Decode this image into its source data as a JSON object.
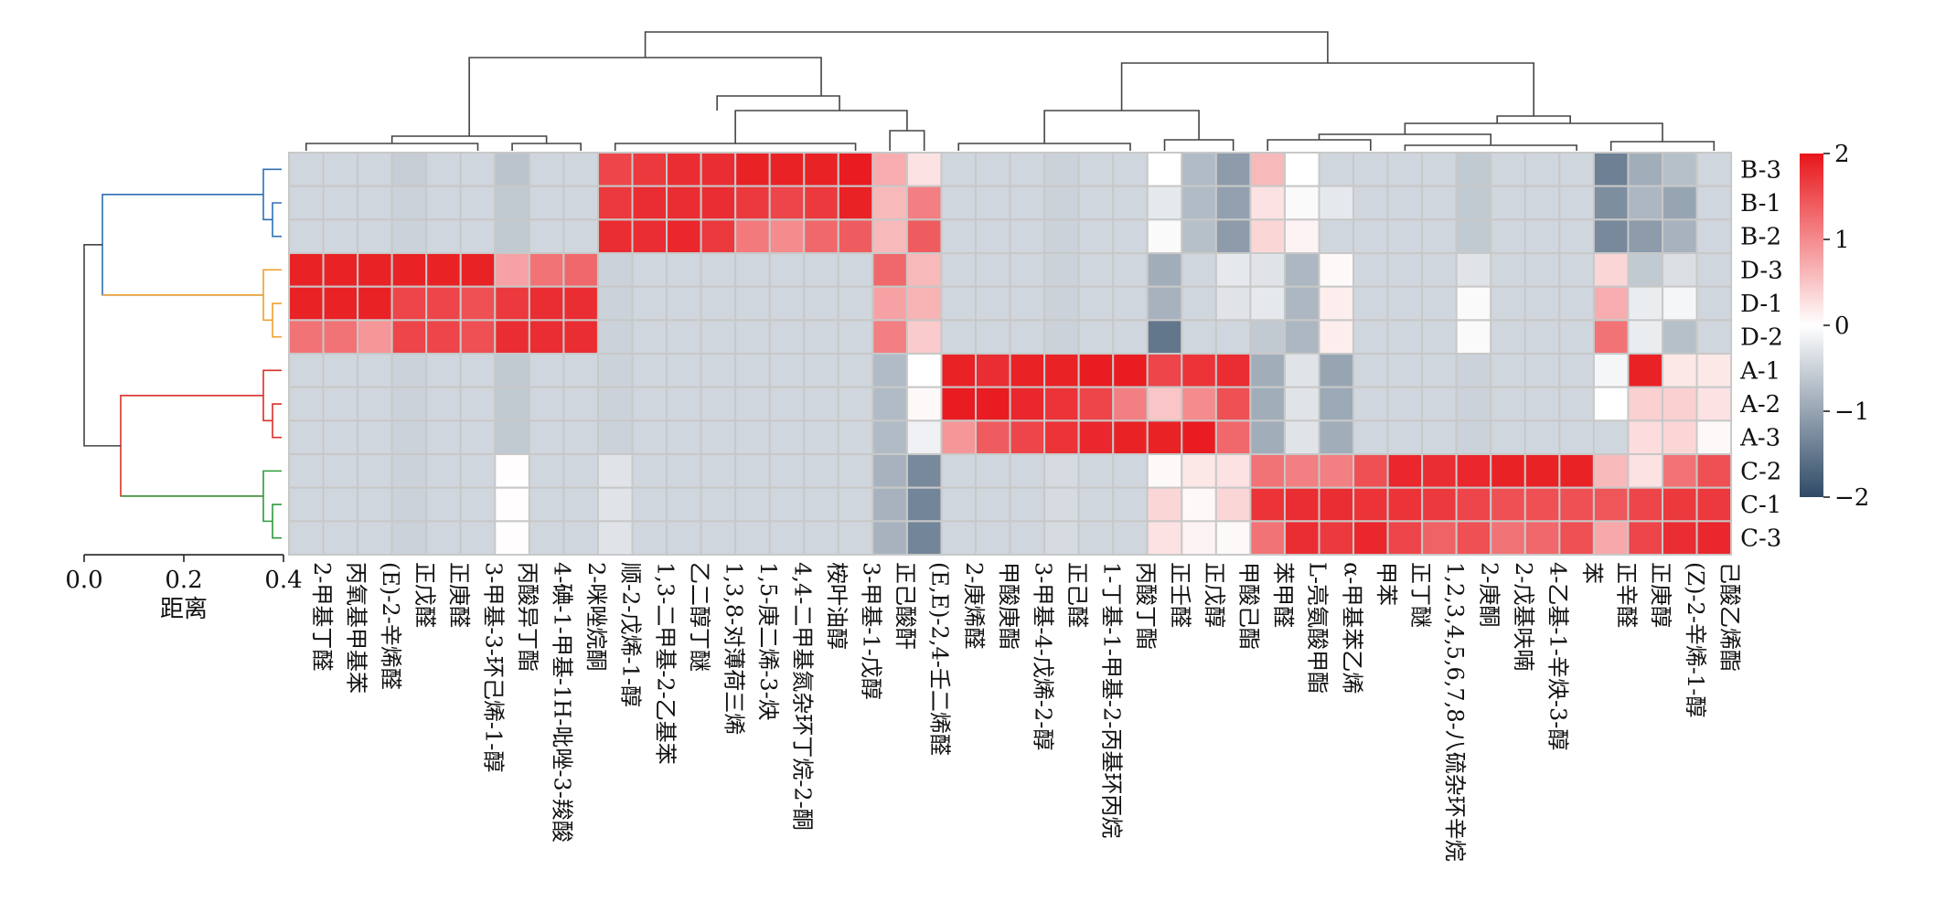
{
  "chart_data": {
    "type": "heatmap",
    "title": "",
    "xlabel": "",
    "ylabel": "",
    "rows": [
      "B-3",
      "B-1",
      "B-2",
      "D-3",
      "D-1",
      "D-2",
      "A-1",
      "A-2",
      "A-3",
      "C-2",
      "C-1",
      "C-3"
    ],
    "row_groups": [
      {
        "members": [
          "B-3",
          "B-1",
          "B-2"
        ],
        "color": "#2f6fb5"
      },
      {
        "members": [
          "D-3",
          "D-1",
          "D-2"
        ],
        "color": "#f0a030"
      },
      {
        "members": [
          "A-1",
          "A-2",
          "A-3"
        ],
        "color": "#d9302a"
      },
      {
        "members": [
          "C-2",
          "C-1",
          "C-3"
        ],
        "color": "#2e9a3c"
      }
    ],
    "columns": [
      "2-甲基丁醛",
      "丙氧基甲基苯",
      "(E)-2-辛烯醛",
      "正戊醛",
      "正庚醛",
      "3-甲基-3-环己烯-1-醇",
      "丙酸异丁酯",
      "4-碘-1-甲基-1H-吡唑-3-羧酸",
      "2-咪唑烷酮",
      "顺-2-戊烯-1-醇",
      "1,3-二甲基-2-乙基苯",
      "乙二醇丁醚",
      "1,3,8-对薄荷三烯",
      "1,5-庚二烯-3-炔",
      "4,4-二甲基氮杂环丁烷-2-酮",
      "桉叶油醇",
      "3-甲基-1-戊醇",
      "正己酸酐",
      "(E,E)-2,4-壬二烯醛",
      "2-庚烯醛",
      "甲酸庚酯",
      "3-甲基-4-戊烯-2-醇",
      "正己醛",
      "1-丁基-1-甲基-2-丙基环丙烷",
      "丙酸丁酯",
      "正壬醛",
      "正戊醇",
      "甲酸己酯",
      "苯甲醛",
      "L-亮氨酸甲酯",
      "α-甲基苯乙烯",
      "甲苯",
      "正丁醚",
      "1,2,3,4,5,6,7,8-八硫杂环辛烷",
      "2-庚酮",
      "2-戊基呋喃",
      "4-乙基-1-辛炔-3-醇",
      "苯",
      "正辛醛",
      "正庚醇",
      "(Z)-2-辛烯-1-醇",
      "己酸乙烯酯"
    ],
    "values": [
      [
        -0.45,
        -0.45,
        -0.45,
        -0.55,
        -0.45,
        -0.45,
        -0.65,
        -0.45,
        -0.45,
        1.6,
        1.7,
        1.8,
        1.8,
        1.9,
        1.9,
        1.9,
        1.95,
        0.7,
        0.25,
        -0.45,
        -0.45,
        -0.45,
        -0.5,
        -0.45,
        -0.45,
        0.0,
        -0.75,
        -1.1,
        0.6,
        0.0,
        -0.45,
        -0.45,
        -0.45,
        -0.45,
        -0.6,
        -0.45,
        -0.45,
        -0.45,
        -1.4,
        -0.9,
        -0.7,
        -0.45
      ],
      [
        -0.45,
        -0.45,
        -0.45,
        -0.5,
        -0.45,
        -0.45,
        -0.6,
        -0.45,
        -0.45,
        1.7,
        1.8,
        1.8,
        1.8,
        1.7,
        1.6,
        1.7,
        1.9,
        0.6,
        1.1,
        -0.45,
        -0.45,
        -0.45,
        -0.5,
        -0.45,
        -0.45,
        -0.25,
        -0.75,
        -1.05,
        0.25,
        -0.05,
        -0.25,
        -0.45,
        -0.45,
        -0.45,
        -0.6,
        -0.45,
        -0.45,
        -0.45,
        -1.25,
        -0.8,
        -1.0,
        -0.45
      ],
      [
        -0.45,
        -0.45,
        -0.45,
        -0.5,
        -0.45,
        -0.45,
        -0.6,
        -0.45,
        -0.45,
        1.8,
        1.8,
        1.85,
        1.7,
        1.15,
        1.0,
        1.3,
        1.4,
        0.6,
        1.4,
        -0.45,
        -0.45,
        -0.45,
        -0.5,
        -0.45,
        -0.45,
        -0.05,
        -0.7,
        -1.1,
        0.35,
        0.1,
        -0.45,
        -0.45,
        -0.45,
        -0.45,
        -0.6,
        -0.45,
        -0.45,
        -0.45,
        -1.3,
        -1.1,
        -0.85,
        -0.45
      ],
      [
        1.9,
        1.9,
        1.9,
        1.9,
        1.9,
        1.9,
        0.8,
        1.2,
        1.3,
        -0.5,
        -0.45,
        -0.45,
        -0.45,
        -0.45,
        -0.45,
        -0.45,
        -0.45,
        1.3,
        0.6,
        -0.45,
        -0.45,
        -0.45,
        -0.5,
        -0.45,
        -0.45,
        -0.9,
        -0.45,
        -0.25,
        -0.3,
        -0.8,
        0.05,
        -0.45,
        -0.45,
        -0.45,
        -0.3,
        -0.45,
        -0.45,
        -0.45,
        0.35,
        -0.6,
        -0.35,
        -0.45
      ],
      [
        1.9,
        1.9,
        1.9,
        1.6,
        1.6,
        1.5,
        1.7,
        1.8,
        1.8,
        -0.5,
        -0.45,
        -0.45,
        -0.45,
        -0.45,
        -0.45,
        -0.45,
        -0.45,
        0.8,
        0.65,
        -0.45,
        -0.45,
        -0.45,
        -0.5,
        -0.45,
        -0.45,
        -0.85,
        -0.45,
        -0.3,
        -0.25,
        -0.8,
        0.15,
        -0.45,
        -0.45,
        -0.45,
        -0.05,
        -0.45,
        -0.45,
        -0.45,
        0.7,
        -0.2,
        -0.1,
        -0.45
      ],
      [
        1.2,
        1.2,
        0.9,
        1.6,
        1.6,
        1.5,
        1.8,
        1.8,
        1.8,
        -0.5,
        -0.45,
        -0.45,
        -0.45,
        -0.45,
        -0.45,
        -0.45,
        -0.45,
        1.1,
        0.45,
        -0.45,
        -0.45,
        -0.45,
        -0.5,
        -0.45,
        -0.45,
        -1.5,
        -0.45,
        -0.45,
        -0.6,
        -0.8,
        0.15,
        -0.45,
        -0.45,
        -0.45,
        -0.05,
        -0.45,
        -0.45,
        -0.45,
        1.2,
        -0.2,
        -0.7,
        -0.45
      ],
      [
        -0.45,
        -0.45,
        -0.45,
        -0.5,
        -0.45,
        -0.45,
        -0.6,
        -0.45,
        -0.45,
        -0.5,
        -0.45,
        -0.45,
        -0.45,
        -0.45,
        -0.45,
        -0.45,
        -0.45,
        -0.75,
        0.0,
        1.9,
        1.8,
        1.9,
        1.9,
        1.95,
        1.95,
        1.6,
        1.75,
        1.8,
        -0.9,
        -0.3,
        -1.0,
        -0.45,
        -0.45,
        -0.45,
        -0.5,
        -0.45,
        -0.45,
        -0.45,
        -0.1,
        1.9,
        0.2,
        0.2
      ],
      [
        -0.45,
        -0.45,
        -0.45,
        -0.5,
        -0.45,
        -0.45,
        -0.6,
        -0.45,
        -0.45,
        -0.5,
        -0.45,
        -0.45,
        -0.45,
        -0.45,
        -0.45,
        -0.45,
        -0.45,
        -0.75,
        0.05,
        1.95,
        1.95,
        1.85,
        1.75,
        1.6,
        1.1,
        0.5,
        1.0,
        1.5,
        -0.9,
        -0.3,
        -0.95,
        -0.45,
        -0.45,
        -0.45,
        -0.5,
        -0.45,
        -0.45,
        -0.45,
        0.0,
        0.4,
        0.4,
        0.25
      ],
      [
        -0.45,
        -0.45,
        -0.45,
        -0.5,
        -0.45,
        -0.45,
        -0.6,
        -0.45,
        -0.45,
        -0.5,
        -0.45,
        -0.45,
        -0.45,
        -0.45,
        -0.45,
        -0.45,
        -0.45,
        -0.75,
        -0.15,
        0.9,
        1.4,
        1.6,
        1.75,
        1.85,
        1.9,
        1.9,
        1.95,
        1.3,
        -0.9,
        -0.3,
        -0.9,
        -0.45,
        -0.45,
        -0.45,
        -0.5,
        -0.45,
        -0.45,
        -0.45,
        -0.45,
        0.3,
        0.35,
        0.05
      ],
      [
        -0.45,
        -0.45,
        -0.45,
        -0.5,
        -0.45,
        -0.45,
        0.02,
        -0.45,
        -0.45,
        -0.3,
        -0.45,
        -0.45,
        -0.45,
        -0.45,
        -0.45,
        -0.45,
        -0.45,
        -0.85,
        -1.3,
        -0.45,
        -0.45,
        -0.45,
        -0.4,
        -0.45,
        -0.45,
        0.05,
        0.2,
        0.25,
        1.2,
        1.1,
        1.1,
        1.5,
        1.85,
        1.8,
        1.85,
        1.9,
        1.9,
        1.9,
        0.6,
        0.25,
        1.2,
        1.5
      ],
      [
        -0.45,
        -0.45,
        -0.45,
        -0.5,
        -0.45,
        -0.45,
        0.02,
        -0.45,
        -0.45,
        -0.3,
        -0.45,
        -0.45,
        -0.45,
        -0.45,
        -0.45,
        -0.45,
        -0.45,
        -0.85,
        -1.35,
        -0.45,
        -0.45,
        -0.45,
        -0.4,
        -0.45,
        -0.45,
        0.35,
        0.05,
        0.35,
        1.75,
        1.8,
        1.8,
        1.75,
        1.75,
        1.7,
        1.6,
        1.5,
        1.5,
        1.5,
        1.45,
        1.6,
        1.7,
        1.7
      ],
      [
        -0.45,
        -0.45,
        -0.45,
        -0.5,
        -0.45,
        -0.45,
        0.02,
        -0.45,
        -0.45,
        -0.3,
        -0.45,
        -0.45,
        -0.45,
        -0.45,
        -0.45,
        -0.45,
        -0.45,
        -0.85,
        -1.35,
        -0.45,
        -0.45,
        -0.45,
        -0.4,
        -0.45,
        -0.45,
        0.25,
        0.1,
        0.05,
        1.2,
        1.8,
        1.7,
        1.85,
        1.6,
        1.35,
        1.5,
        1.2,
        1.3,
        1.5,
        0.75,
        1.6,
        1.8,
        1.85
      ]
    ],
    "colorbar": {
      "vmin": -2,
      "vmax": 2,
      "ticks": [
        2,
        1,
        0,
        -1,
        -2
      ],
      "tick_labels": [
        "2",
        "1",
        "0",
        "−1",
        "−2"
      ],
      "colors": {
        "low": "#2f4a66",
        "mid": "#ffffff",
        "high": "#e8161b"
      }
    },
    "row_dendrogram_axis": {
      "label": "距离",
      "ticks": [
        "0.0",
        "0.2",
        "0.4"
      ],
      "range": [
        0.0,
        0.4
      ]
    }
  }
}
